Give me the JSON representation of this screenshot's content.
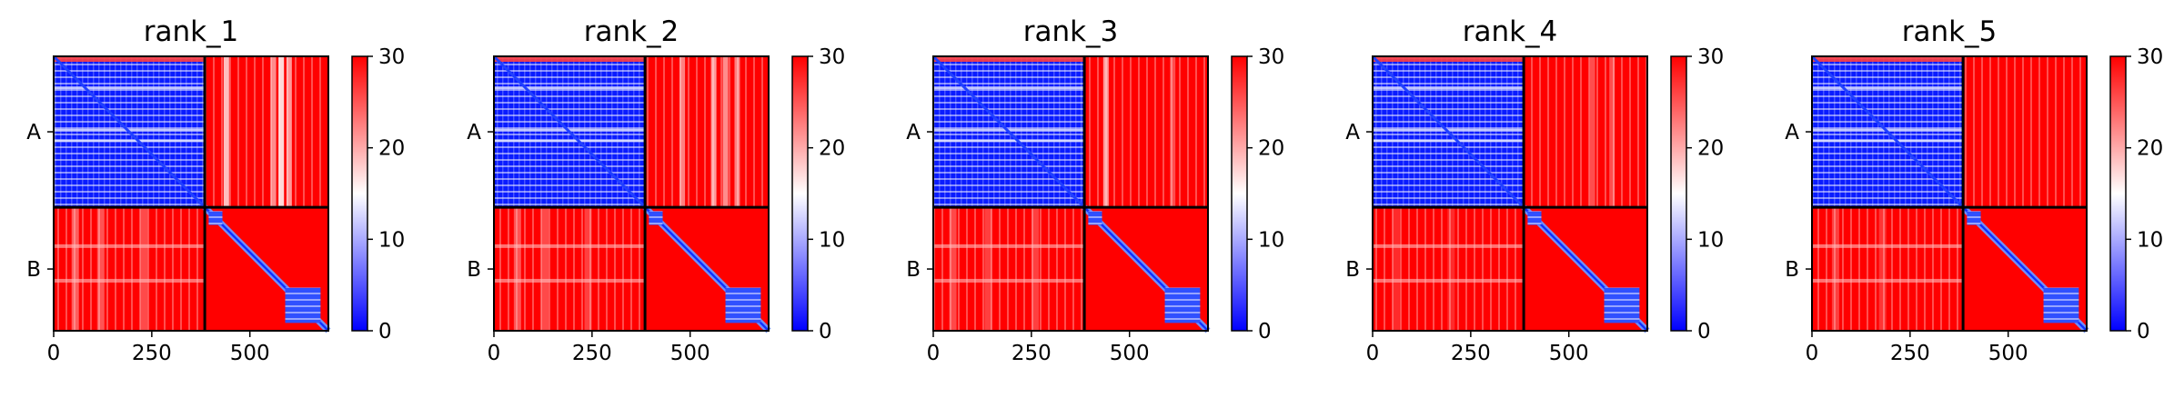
{
  "chart_data": [
    {
      "type": "heatmap",
      "title": "rank_1",
      "x_ticks": [
        0,
        250,
        500
      ],
      "y_tick_labels": [
        "A",
        "B"
      ],
      "chains": [
        {
          "name": "A",
          "length": 385
        },
        {
          "name": "B",
          "length": 315
        }
      ],
      "colorbar": {
        "ticks": [
          0,
          10,
          20,
          30
        ],
        "range": [
          0,
          30
        ],
        "colormap": "bwr"
      },
      "colors": {
        "low": "#0000ff",
        "mid": "#ffffff",
        "high": "#ff0000"
      },
      "inter_chain_stripes_A_B": [
        {
          "residue": 440,
          "strength": 0.75
        },
        {
          "residue": 560,
          "strength": 0.55
        },
        {
          "residue": 580,
          "strength": 0.85
        },
        {
          "residue": 600,
          "strength": 0.6
        }
      ],
      "inter_chain_stripes_B_A": [
        {
          "residue": 55,
          "strength": 0.45
        },
        {
          "residue": 120,
          "strength": 0.4
        },
        {
          "residue": 230,
          "strength": 0.35
        }
      ],
      "domain_blocks_B": [
        {
          "start": 395,
          "end": 430
        },
        {
          "start": 590,
          "end": 680
        }
      ]
    },
    {
      "type": "heatmap",
      "title": "rank_2",
      "x_ticks": [
        0,
        250,
        500
      ],
      "y_tick_labels": [
        "A",
        "B"
      ],
      "chains": [
        {
          "name": "A",
          "length": 385
        },
        {
          "name": "B",
          "length": 315
        }
      ],
      "colorbar": {
        "ticks": [
          0,
          10,
          20,
          30
        ],
        "range": [
          0,
          30
        ],
        "colormap": "bwr"
      },
      "colors": {
        "low": "#0000ff",
        "mid": "#ffffff",
        "high": "#ff0000"
      },
      "inter_chain_stripes_A_B": [
        {
          "residue": 480,
          "strength": 0.5
        },
        {
          "residue": 560,
          "strength": 0.6
        },
        {
          "residue": 590,
          "strength": 0.55
        },
        {
          "residue": 620,
          "strength": 0.5
        }
      ],
      "inter_chain_stripes_B_A": [
        {
          "residue": 60,
          "strength": 0.4
        },
        {
          "residue": 130,
          "strength": 0.35
        },
        {
          "residue": 240,
          "strength": 0.3
        }
      ],
      "domain_blocks_B": [
        {
          "start": 395,
          "end": 430
        },
        {
          "start": 590,
          "end": 680
        }
      ]
    },
    {
      "type": "heatmap",
      "title": "rank_3",
      "x_ticks": [
        0,
        250,
        500
      ],
      "y_tick_labels": [
        "A",
        "B"
      ],
      "chains": [
        {
          "name": "A",
          "length": 385
        },
        {
          "name": "B",
          "length": 315
        }
      ],
      "colorbar": {
        "ticks": [
          0,
          10,
          20,
          30
        ],
        "range": [
          0,
          30
        ],
        "colormap": "bwr"
      },
      "colors": {
        "low": "#0000ff",
        "mid": "#ffffff",
        "high": "#ff0000"
      },
      "inter_chain_stripes_A_B": [
        {
          "residue": 440,
          "strength": 0.6
        },
        {
          "residue": 610,
          "strength": 0.3
        }
      ],
      "inter_chain_stripes_B_A": [
        {
          "residue": 50,
          "strength": 0.35
        },
        {
          "residue": 140,
          "strength": 0.3
        },
        {
          "residue": 260,
          "strength": 0.3
        }
      ],
      "domain_blocks_B": [
        {
          "start": 395,
          "end": 430
        },
        {
          "start": 590,
          "end": 680
        }
      ]
    },
    {
      "type": "heatmap",
      "title": "rank_4",
      "x_ticks": [
        0,
        250,
        500
      ],
      "y_tick_labels": [
        "A",
        "B"
      ],
      "chains": [
        {
          "name": "A",
          "length": 385
        },
        {
          "name": "B",
          "length": 315
        }
      ],
      "colorbar": {
        "ticks": [
          0,
          10,
          20,
          30
        ],
        "range": [
          0,
          30
        ],
        "colormap": "bwr"
      },
      "colors": {
        "low": "#0000ff",
        "mid": "#ffffff",
        "high": "#ff0000"
      },
      "inter_chain_stripes_A_B": [
        {
          "residue": 560,
          "strength": 0.3
        },
        {
          "residue": 610,
          "strength": 0.3
        }
      ],
      "inter_chain_stripes_B_A": [
        {
          "residue": 60,
          "strength": 0.2
        },
        {
          "residue": 200,
          "strength": 0.2
        }
      ],
      "domain_blocks_B": [
        {
          "start": 395,
          "end": 430
        },
        {
          "start": 590,
          "end": 680
        }
      ]
    },
    {
      "type": "heatmap",
      "title": "rank_5",
      "x_ticks": [
        0,
        250,
        500
      ],
      "y_tick_labels": [
        "A",
        "B"
      ],
      "chains": [
        {
          "name": "A",
          "length": 385
        },
        {
          "name": "B",
          "length": 315
        }
      ],
      "colorbar": {
        "ticks": [
          0,
          10,
          20,
          30
        ],
        "range": [
          0,
          30
        ],
        "colormap": "bwr"
      },
      "colors": {
        "low": "#0000ff",
        "mid": "#ffffff",
        "high": "#ff0000"
      },
      "inter_chain_stripes_A_B": [],
      "inter_chain_stripes_B_A": [
        {
          "residue": 60,
          "strength": 0.3
        },
        {
          "residue": 180,
          "strength": 0.25
        }
      ],
      "domain_blocks_B": [
        {
          "start": 395,
          "end": 430
        },
        {
          "start": 590,
          "end": 680
        }
      ]
    }
  ]
}
